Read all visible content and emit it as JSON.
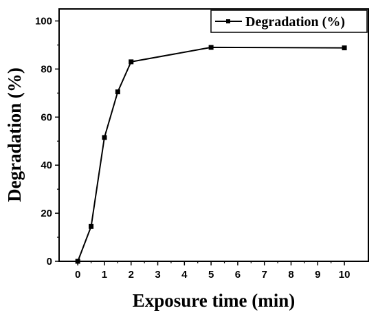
{
  "chart_data": {
    "type": "line",
    "xlabel": "Exposure time (min)",
    "ylabel": "Degradation (%)",
    "xlim": [
      -0.7,
      10.9
    ],
    "ylim": [
      0,
      105
    ],
    "x_ticks": [
      0,
      1,
      2,
      3,
      4,
      5,
      6,
      7,
      8,
      9,
      10
    ],
    "y_ticks": [
      0,
      20,
      40,
      60,
      80,
      100
    ],
    "grid": false,
    "legend_position": "top-right",
    "series": [
      {
        "name": "Degradation (%)",
        "color": "#000000",
        "marker": "square",
        "x": [
          0,
          0.5,
          1,
          1.5,
          2,
          5,
          10
        ],
        "y": [
          0,
          14.5,
          51.5,
          70.5,
          83,
          89,
          88.8
        ]
      }
    ]
  }
}
